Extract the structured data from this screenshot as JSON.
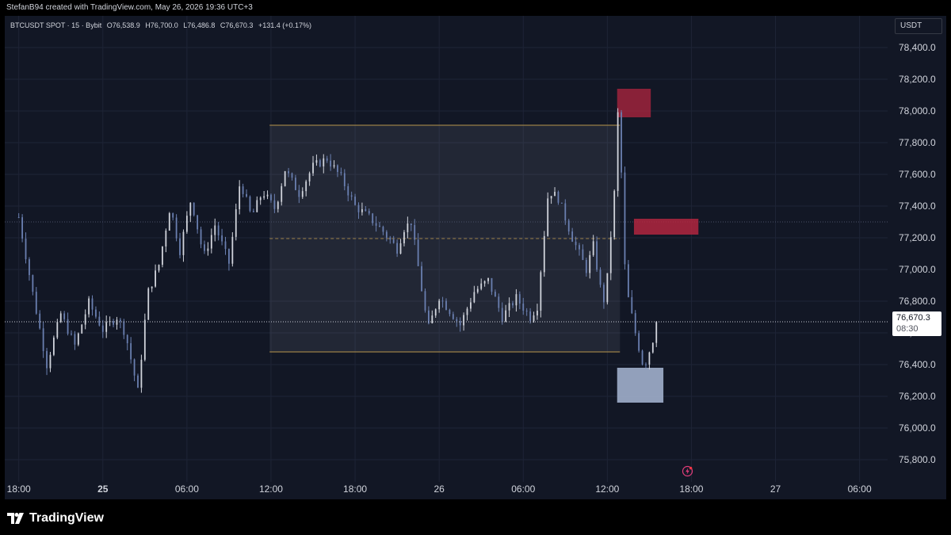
{
  "header": {
    "credit": "StefanB94 created with TradingView.com, May 26, 2026 19:36 UTC+3"
  },
  "legend": {
    "symbol": "BTCUSDT SPOT · 15 · Bybit",
    "open": "O76,538.9",
    "high": "H76,700.0",
    "low": "L76,486.8",
    "close": "C76,670.3",
    "change": "+131.4 (+0.17%)"
  },
  "price_axis": {
    "unit": "USDT"
  },
  "last_price": {
    "value": "76,670.3",
    "countdown": "08:30"
  },
  "brand": {
    "name": "TradingView"
  },
  "colors": {
    "background": "#121725",
    "candle": "#d1d4dc",
    "candle_down": "#6a7fb0",
    "range_box": "#c8cfe0",
    "range_border": "#b8954a",
    "supply_zone": "#b2263f",
    "demand_zone": "#a9b9d6"
  },
  "chart_data": {
    "type": "candlestick",
    "timeframe": "15",
    "x_ticks": [
      "18:00",
      "25",
      "06:00",
      "12:00",
      "18:00",
      "26",
      "06:00",
      "12:00",
      "18:00",
      "27",
      "06:00"
    ],
    "y_ticks": [
      "78,400.0",
      "78,200.0",
      "78,000.0",
      "77,800.0",
      "77,600.0",
      "77,400.0",
      "77,200.0",
      "77,000.0",
      "76,800.0",
      "76,600.0",
      "76,400.0",
      "76,200.0",
      "76,000.0",
      "75,800.0"
    ],
    "ylim": [
      75660,
      78600
    ],
    "x_range_hours": [
      -1,
      62
    ],
    "last_price": 76670.3,
    "path": [
      [
        0,
        77330
      ],
      [
        1,
        76850
      ],
      [
        2,
        76400
      ],
      [
        3,
        76720
      ],
      [
        4,
        76520
      ],
      [
        5,
        76790
      ],
      [
        6,
        76620
      ],
      [
        7,
        76700
      ],
      [
        7.6,
        76600
      ],
      [
        8.5,
        76230
      ],
      [
        9.2,
        76850
      ],
      [
        10,
        77030
      ],
      [
        10.8,
        77400
      ],
      [
        11.5,
        77120
      ],
      [
        12.3,
        77450
      ],
      [
        13.2,
        77080
      ],
      [
        14,
        77280
      ],
      [
        15,
        77040
      ],
      [
        15.8,
        77560
      ],
      [
        16.6,
        77330
      ],
      [
        17.4,
        77490
      ],
      [
        18.3,
        77380
      ],
      [
        19,
        77630
      ],
      [
        20,
        77480
      ],
      [
        21,
        77650
      ],
      [
        22,
        77700
      ],
      [
        23,
        77580
      ],
      [
        24,
        77400
      ],
      [
        25,
        77330
      ],
      [
        26,
        77240
      ],
      [
        27,
        77130
      ],
      [
        27.5,
        77260
      ],
      [
        28,
        77300
      ],
      [
        29.2,
        76620
      ],
      [
        30,
        76830
      ],
      [
        31.5,
        76650
      ],
      [
        32.5,
        76860
      ],
      [
        33.5,
        76930
      ],
      [
        34.5,
        76700
      ],
      [
        35.5,
        76820
      ],
      [
        36.5,
        76700
      ],
      [
        37,
        76770
      ],
      [
        37.8,
        77500
      ],
      [
        38.5,
        77450
      ],
      [
        39.5,
        77200
      ],
      [
        40.5,
        77000
      ],
      [
        41,
        77150
      ],
      [
        41.7,
        76780
      ],
      [
        42,
        76950
      ],
      [
        42.5,
        77480
      ],
      [
        42.8,
        78080
      ],
      [
        43.3,
        76900
      ],
      [
        44,
        76600
      ],
      [
        44.6,
        76380
      ],
      [
        45.2,
        76540
      ],
      [
        45.6,
        76670
      ]
    ],
    "annotations": {
      "range_box": {
        "x_hours": [
          17.9,
          42.9
        ],
        "top": 77910,
        "bottom": 76480,
        "mid": 77195
      },
      "supply_zone_high": {
        "x_hours": [
          42.7,
          45.1
        ],
        "top": 78140,
        "bottom": 77960
      },
      "supply_zone_low": {
        "x_hours": [
          43.9,
          48.5
        ],
        "top": 77320,
        "bottom": 77220
      },
      "demand_zone": {
        "x_hours": [
          42.7,
          46.0
        ],
        "top": 76380,
        "bottom": 76160
      }
    }
  }
}
